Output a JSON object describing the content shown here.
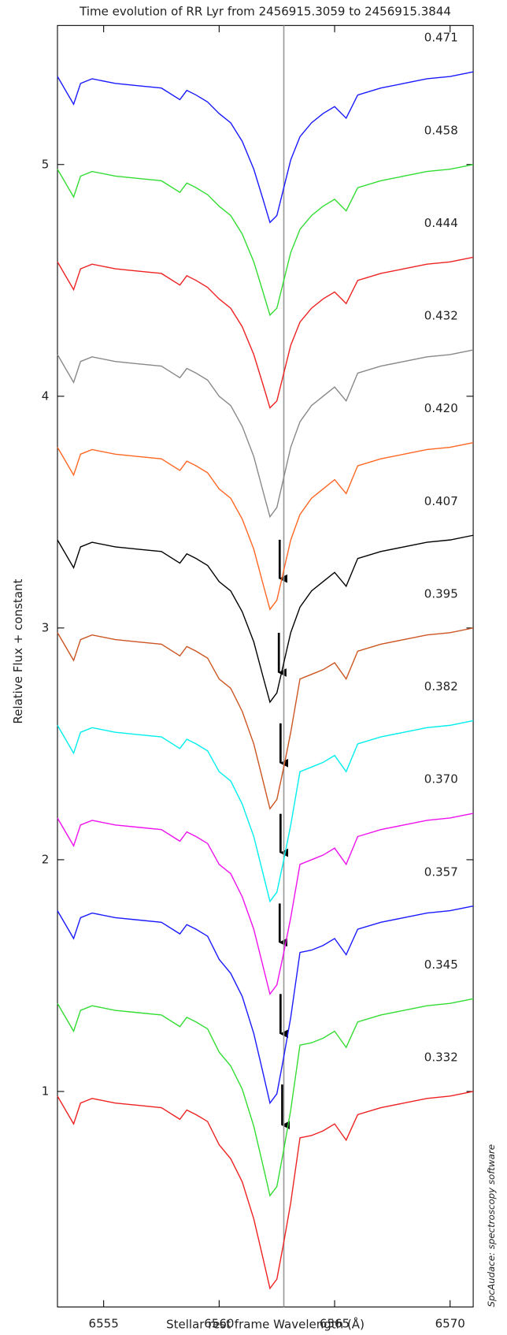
{
  "chart_data": {
    "type": "line",
    "title": "Time evolution of RR Lyr from 2456915.3059 to 2456915.3844",
    "x_label": "Stellar rest frame Wavelength (Å)",
    "y_label": "Relative Flux + constant",
    "credit": "SpcAudace: spectroscopy software",
    "xlim": [
      6553,
      6571
    ],
    "ylim": [
      0.07,
      5.6
    ],
    "xticks": [
      6555,
      6560,
      6565,
      6570
    ],
    "yticks": [
      1,
      2,
      3,
      4,
      5
    ],
    "vline": 6562.8,
    "vline_color": "#999999",
    "x": [
      6553.0,
      6553.7,
      6554.0,
      6554.5,
      6555.5,
      6556.5,
      6557.5,
      6558.3,
      6558.6,
      6559.0,
      6559.5,
      6560.0,
      6560.5,
      6561.0,
      6561.5,
      6561.9,
      6562.2,
      6562.5,
      6562.8,
      6563.1,
      6563.5,
      6564.0,
      6564.5,
      6565.0,
      6565.5,
      6566.0,
      6567.0,
      6568.0,
      6569.0,
      6570.0,
      6571.0
    ],
    "series": [
      {
        "name": "0.471",
        "color": "#1a1aff",
        "values": [
          5.38,
          5.26,
          5.35,
          5.37,
          5.35,
          5.34,
          5.33,
          5.28,
          5.32,
          5.3,
          5.27,
          5.22,
          5.18,
          5.1,
          4.98,
          4.85,
          4.75,
          4.78,
          4.9,
          5.02,
          5.12,
          5.18,
          5.22,
          5.25,
          5.2,
          5.3,
          5.33,
          5.35,
          5.37,
          5.38,
          5.4
        ]
      },
      {
        "name": "0.458",
        "color": "#33dd33",
        "values": [
          4.98,
          4.86,
          4.95,
          4.97,
          4.95,
          4.94,
          4.93,
          4.88,
          4.92,
          4.9,
          4.87,
          4.82,
          4.78,
          4.7,
          4.58,
          4.45,
          4.35,
          4.38,
          4.5,
          4.62,
          4.72,
          4.78,
          4.82,
          4.85,
          4.8,
          4.9,
          4.93,
          4.95,
          4.97,
          4.98,
          5.0
        ]
      },
      {
        "name": "0.444",
        "color": "#ee2222",
        "values": [
          4.58,
          4.46,
          4.55,
          4.57,
          4.55,
          4.54,
          4.53,
          4.48,
          4.52,
          4.5,
          4.47,
          4.42,
          4.38,
          4.3,
          4.18,
          4.05,
          3.95,
          3.98,
          4.1,
          4.22,
          4.32,
          4.38,
          4.42,
          4.45,
          4.4,
          4.5,
          4.53,
          4.55,
          4.57,
          4.58,
          4.6
        ]
      },
      {
        "name": "0.432",
        "color": "#888888",
        "values": [
          4.18,
          4.06,
          4.15,
          4.17,
          4.15,
          4.14,
          4.13,
          4.08,
          4.12,
          4.1,
          4.07,
          4.0,
          3.96,
          3.87,
          3.74,
          3.59,
          3.48,
          3.52,
          3.65,
          3.78,
          3.89,
          3.96,
          4.0,
          4.04,
          3.98,
          4.1,
          4.13,
          4.15,
          4.17,
          4.18,
          4.2
        ]
      },
      {
        "name": "0.420",
        "color": "#ff6622",
        "values": [
          3.78,
          3.66,
          3.75,
          3.77,
          3.75,
          3.74,
          3.73,
          3.68,
          3.72,
          3.7,
          3.67,
          3.6,
          3.56,
          3.47,
          3.34,
          3.19,
          3.08,
          3.12,
          3.25,
          3.38,
          3.49,
          3.56,
          3.6,
          3.64,
          3.58,
          3.7,
          3.73,
          3.75,
          3.77,
          3.78,
          3.8
        ]
      },
      {
        "name": "0.407",
        "color": "#000000",
        "values": [
          3.38,
          3.26,
          3.35,
          3.37,
          3.35,
          3.34,
          3.33,
          3.28,
          3.32,
          3.3,
          3.27,
          3.2,
          3.16,
          3.07,
          2.94,
          2.79,
          2.68,
          2.72,
          2.85,
          2.98,
          3.09,
          3.16,
          3.2,
          3.24,
          3.18,
          3.3,
          3.33,
          3.35,
          3.37,
          3.38,
          3.4
        ]
      },
      {
        "name": "0.395",
        "color": "#cc5522",
        "values": [
          2.98,
          2.86,
          2.95,
          2.97,
          2.95,
          2.94,
          2.93,
          2.88,
          2.92,
          2.9,
          2.87,
          2.78,
          2.74,
          2.64,
          2.5,
          2.34,
          2.22,
          2.26,
          2.4,
          2.55,
          2.78,
          2.8,
          2.82,
          2.85,
          2.78,
          2.9,
          2.93,
          2.95,
          2.97,
          2.98,
          3.0
        ]
      },
      {
        "name": "0.382",
        "color": "#00eeee",
        "values": [
          2.58,
          2.46,
          2.55,
          2.57,
          2.55,
          2.54,
          2.53,
          2.48,
          2.52,
          2.5,
          2.47,
          2.38,
          2.34,
          2.24,
          2.1,
          1.94,
          1.82,
          1.86,
          2.0,
          2.15,
          2.38,
          2.4,
          2.42,
          2.45,
          2.38,
          2.5,
          2.53,
          2.55,
          2.57,
          2.58,
          2.6
        ]
      },
      {
        "name": "0.370",
        "color": "#ee11ee",
        "values": [
          2.18,
          2.06,
          2.15,
          2.17,
          2.15,
          2.14,
          2.13,
          2.08,
          2.12,
          2.1,
          2.07,
          1.98,
          1.94,
          1.84,
          1.7,
          1.54,
          1.42,
          1.46,
          1.6,
          1.75,
          1.98,
          2.0,
          2.02,
          2.05,
          1.98,
          2.1,
          2.13,
          2.15,
          2.17,
          2.18,
          2.2
        ]
      },
      {
        "name": "0.357",
        "color": "#1a1aff",
        "values": [
          1.78,
          1.66,
          1.75,
          1.77,
          1.75,
          1.74,
          1.73,
          1.68,
          1.72,
          1.7,
          1.67,
          1.57,
          1.51,
          1.41,
          1.25,
          1.08,
          0.95,
          0.99,
          1.15,
          1.32,
          1.6,
          1.61,
          1.63,
          1.66,
          1.59,
          1.7,
          1.73,
          1.75,
          1.77,
          1.78,
          1.8
        ]
      },
      {
        "name": "0.345",
        "color": "#33dd33",
        "values": [
          1.38,
          1.26,
          1.35,
          1.37,
          1.35,
          1.34,
          1.33,
          1.28,
          1.32,
          1.3,
          1.27,
          1.17,
          1.11,
          1.01,
          0.85,
          0.68,
          0.55,
          0.59,
          0.75,
          0.92,
          1.2,
          1.21,
          1.23,
          1.26,
          1.19,
          1.3,
          1.33,
          1.35,
          1.37,
          1.38,
          1.4
        ]
      },
      {
        "name": "0.332",
        "color": "#ee2222",
        "values": [
          0.98,
          0.86,
          0.95,
          0.97,
          0.95,
          0.94,
          0.93,
          0.88,
          0.92,
          0.9,
          0.87,
          0.77,
          0.71,
          0.61,
          0.45,
          0.28,
          0.15,
          0.19,
          0.35,
          0.52,
          0.8,
          0.81,
          0.83,
          0.86,
          0.79,
          0.9,
          0.93,
          0.95,
          0.97,
          0.98,
          1.0
        ]
      }
    ]
  }
}
